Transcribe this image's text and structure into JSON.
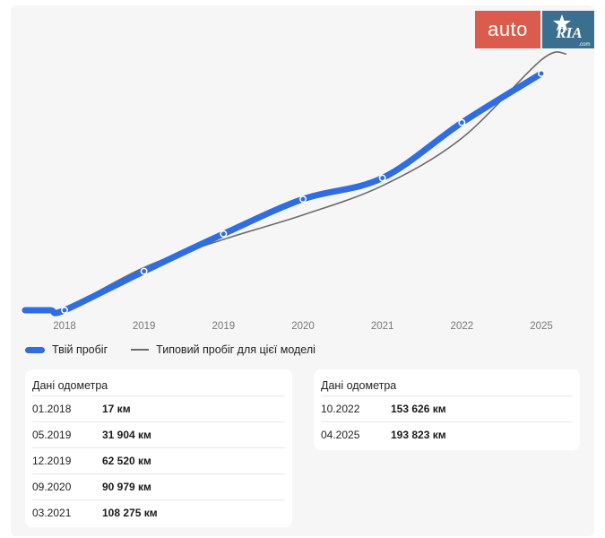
{
  "brand": {
    "auto": "auto",
    "ria": "RIA",
    "ria_sub": ".com",
    "auto_color": "#db5c4c",
    "ria_color": "#3b6f8f"
  },
  "legend": {
    "your_mileage": "Твій пробіг",
    "typical_mileage": "Типовий пробіг для цієї моделі"
  },
  "chart_data": {
    "type": "line",
    "x_tick_labels": [
      "2018",
      "2019",
      "2019",
      "2020",
      "2021",
      "2022",
      "2025"
    ],
    "series": [
      {
        "name": "Твій пробіг",
        "color": "#2f6de0",
        "points": [
          {
            "x": "01.2018",
            "y": 17
          },
          {
            "x": "05.2019",
            "y": 31904
          },
          {
            "x": "12.2019",
            "y": 62520
          },
          {
            "x": "09.2020",
            "y": 90979
          },
          {
            "x": "03.2021",
            "y": 108275
          },
          {
            "x": "10.2022",
            "y": 153626
          },
          {
            "x": "04.2025",
            "y": 193823
          }
        ]
      },
      {
        "name": "Типовий пробіг для цієї моделі",
        "color": "#6b6b6b",
        "points": [
          {
            "x": "01.2018",
            "y": 17
          },
          {
            "x": "05.2019",
            "y": 35000
          },
          {
            "x": "12.2019",
            "y": 58000
          },
          {
            "x": "09.2020",
            "y": 78000
          },
          {
            "x": "03.2021",
            "y": 102000
          },
          {
            "x": "10.2022",
            "y": 141000
          },
          {
            "x": "04.2025",
            "y": 205000
          }
        ]
      }
    ],
    "grid": false,
    "legend_position": "bottom-left"
  },
  "odometer": {
    "title": "Дані одометра",
    "rows_left": [
      {
        "date": "01.2018",
        "value": "17 км"
      },
      {
        "date": "05.2019",
        "value": "31 904 км"
      },
      {
        "date": "12.2019",
        "value": "62 520 км"
      },
      {
        "date": "09.2020",
        "value": "90 979 км"
      },
      {
        "date": "03.2021",
        "value": "108 275 км"
      }
    ],
    "rows_right": [
      {
        "date": "10.2022",
        "value": "153 626 км"
      },
      {
        "date": "04.2025",
        "value": "193 823 км"
      }
    ]
  }
}
